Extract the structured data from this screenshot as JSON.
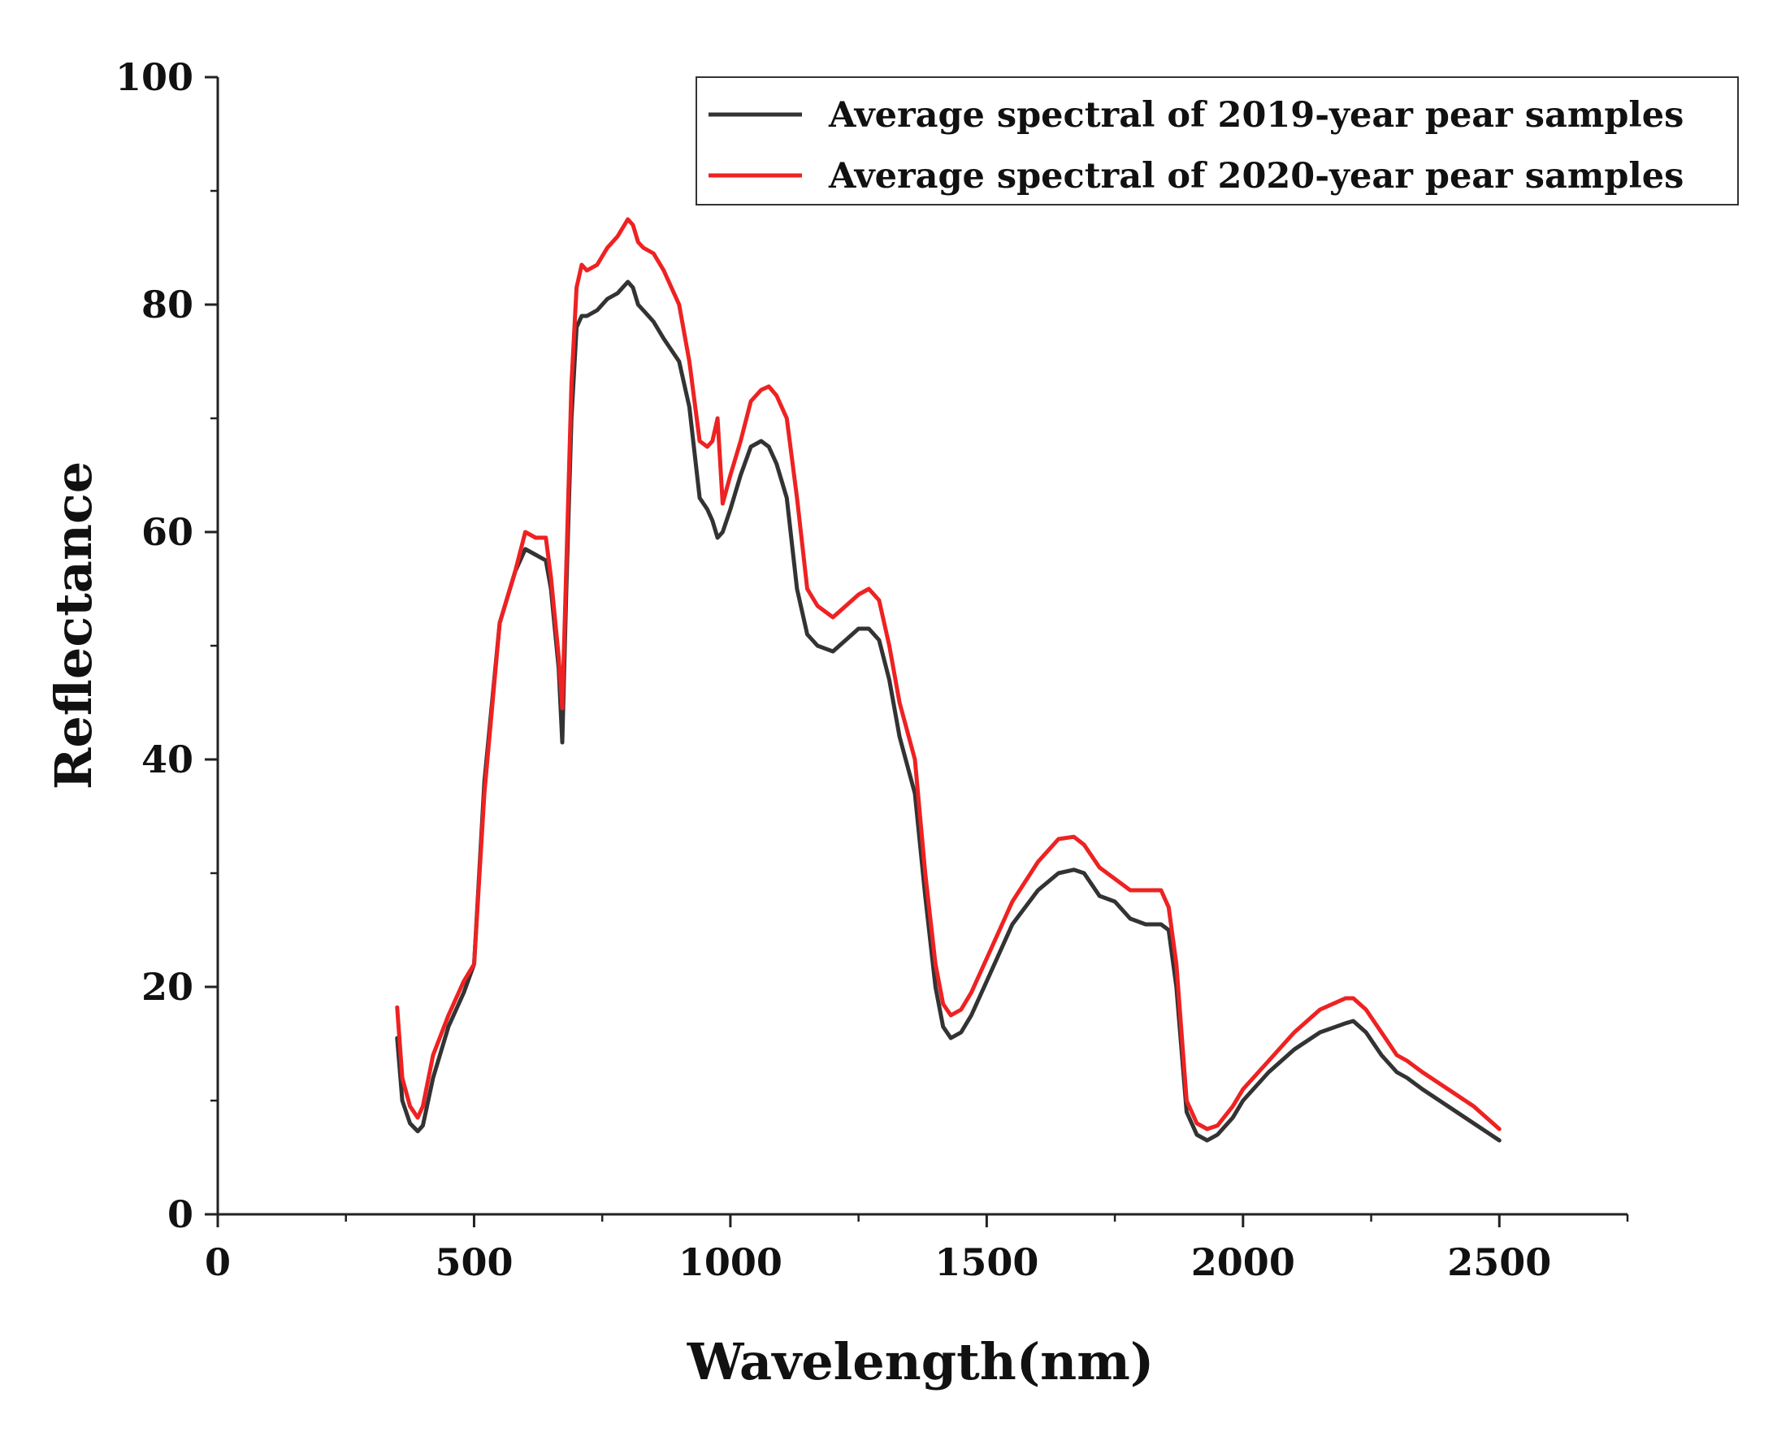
{
  "chart_data": {
    "type": "line",
    "title": "",
    "xlabel": "Wavelength(nm)",
    "ylabel": "Reflectance",
    "xlim": [
      0,
      2750
    ],
    "ylim": [
      0,
      100
    ],
    "xticks": [
      0,
      500,
      1000,
      1500,
      2000,
      2500
    ],
    "yticks": [
      0,
      20,
      40,
      60,
      80,
      100
    ],
    "x_minor_step": 250,
    "y_minor_step": 10,
    "grid": false,
    "legend_position": "top-right",
    "series": [
      {
        "name": "Average spectral of 2019-year pear  samples",
        "color": "#333333",
        "x": [
          350,
          360,
          375,
          390,
          400,
          420,
          450,
          480,
          500,
          520,
          550,
          580,
          600,
          620,
          640,
          650,
          665,
          672,
          680,
          690,
          700,
          710,
          720,
          740,
          760,
          780,
          800,
          810,
          820,
          830,
          850,
          870,
          900,
          920,
          940,
          955,
          965,
          975,
          985,
          1000,
          1020,
          1040,
          1060,
          1075,
          1090,
          1110,
          1130,
          1150,
          1170,
          1200,
          1225,
          1250,
          1270,
          1290,
          1310,
          1330,
          1360,
          1380,
          1400,
          1415,
          1430,
          1450,
          1470,
          1500,
          1550,
          1600,
          1640,
          1670,
          1690,
          1720,
          1750,
          1780,
          1810,
          1840,
          1855,
          1870,
          1890,
          1910,
          1930,
          1950,
          1980,
          2000,
          2050,
          2100,
          2150,
          2200,
          2215,
          2240,
          2270,
          2300,
          2320,
          2350,
          2400,
          2450,
          2500
        ],
        "y": [
          15.5,
          10,
          8,
          7.3,
          7.8,
          12,
          16.5,
          19.5,
          22,
          38,
          52,
          56.5,
          58.5,
          58,
          57.5,
          55,
          48,
          41.5,
          55,
          70,
          78,
          79,
          79,
          79.5,
          80.5,
          81,
          82,
          81.5,
          80,
          79.5,
          78.5,
          77,
          75,
          71,
          63,
          62,
          61,
          59.5,
          60,
          62,
          65,
          67.5,
          68,
          67.5,
          66,
          63,
          55,
          51,
          50,
          49.5,
          50.5,
          51.5,
          51.5,
          50.5,
          47,
          42,
          37,
          28,
          20,
          16.5,
          15.5,
          16,
          17.5,
          20.5,
          25.5,
          28.5,
          30,
          30.3,
          30,
          28,
          27.5,
          26,
          25.5,
          25.5,
          25,
          20,
          9,
          7,
          6.5,
          7,
          8.5,
          10,
          12.5,
          14.5,
          16,
          16.8,
          17,
          16,
          14,
          12.5,
          12,
          11,
          9.5,
          8,
          6.5
        ]
      },
      {
        "name": "Average spectral of 2020-year pear  samples",
        "color": "#ee2222",
        "x": [
          350,
          360,
          375,
          390,
          400,
          420,
          450,
          480,
          500,
          520,
          550,
          580,
          600,
          620,
          640,
          650,
          665,
          672,
          680,
          690,
          700,
          710,
          720,
          740,
          760,
          780,
          800,
          810,
          820,
          830,
          850,
          870,
          900,
          920,
          940,
          955,
          965,
          975,
          985,
          1000,
          1020,
          1040,
          1060,
          1075,
          1090,
          1110,
          1130,
          1150,
          1170,
          1200,
          1225,
          1250,
          1270,
          1290,
          1310,
          1330,
          1360,
          1380,
          1400,
          1415,
          1430,
          1450,
          1470,
          1500,
          1550,
          1600,
          1640,
          1670,
          1690,
          1720,
          1750,
          1780,
          1810,
          1840,
          1855,
          1870,
          1890,
          1910,
          1930,
          1950,
          1980,
          2000,
          2050,
          2100,
          2150,
          2200,
          2215,
          2240,
          2270,
          2300,
          2320,
          2350,
          2400,
          2450,
          2500
        ],
        "y": [
          18.2,
          12,
          9.5,
          8.5,
          9.5,
          14,
          17.5,
          20.5,
          22,
          37,
          52,
          56.5,
          60,
          59.5,
          59.5,
          56,
          49,
          44.5,
          57,
          73,
          81.5,
          83.5,
          83,
          83.5,
          85,
          86,
          87.5,
          87,
          85.5,
          85,
          84.5,
          83,
          80,
          75,
          68,
          67.5,
          68,
          70,
          62.5,
          65,
          68,
          71.5,
          72.5,
          72.8,
          72,
          70,
          63,
          55,
          53.5,
          52.5,
          53.5,
          54.5,
          55,
          54,
          50,
          45,
          40,
          30,
          22,
          18.5,
          17.5,
          18,
          19.5,
          22.5,
          27.5,
          31,
          33,
          33.2,
          32.5,
          30.5,
          29.5,
          28.5,
          28.5,
          28.5,
          27,
          22,
          10,
          8,
          7.5,
          7.8,
          9.5,
          11,
          13.5,
          16,
          18,
          19,
          19,
          18,
          16,
          14,
          13.5,
          12.5,
          11,
          9.5,
          7.5
        ]
      }
    ]
  }
}
